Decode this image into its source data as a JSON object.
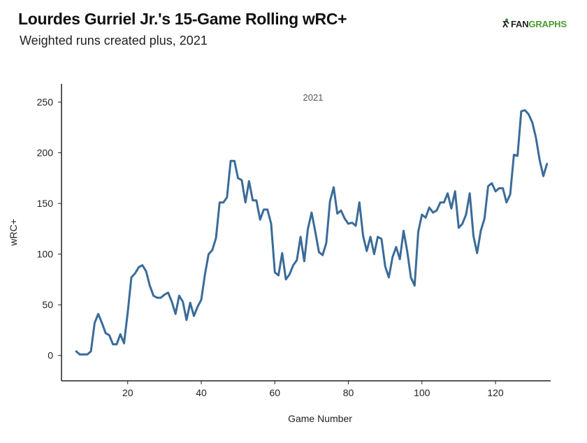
{
  "header": {
    "title": "Lourdes Gurriel Jr.'s 15-Game Rolling wRC+",
    "subtitle": "Weighted runs created plus, 2021",
    "logo_text": "FANGRAPHS",
    "logo_part1": "FAN",
    "logo_part2": "GRAPHS"
  },
  "chart_data": {
    "type": "line",
    "title": "Lourdes Gurriel Jr.'s 15-Game Rolling wRC+",
    "subtitle": "Weighted runs created plus, 2021",
    "xlabel": "Game Number",
    "ylabel": "wRC+",
    "xlim": [
      2,
      135
    ],
    "ylim": [
      -25,
      268
    ],
    "xticks": [
      20,
      40,
      60,
      80,
      100,
      120
    ],
    "yticks": [
      0,
      50,
      100,
      150,
      200,
      250
    ],
    "grid": false,
    "line_color": "#3b6b99",
    "series": [
      {
        "name": "2021",
        "x": [
          6,
          7,
          8,
          9,
          10,
          11,
          12,
          13,
          14,
          15,
          16,
          17,
          18,
          19,
          20,
          21,
          22,
          23,
          24,
          25,
          26,
          27,
          28,
          29,
          30,
          31,
          32,
          33,
          34,
          35,
          36,
          37,
          38,
          39,
          40,
          41,
          42,
          43,
          44,
          45,
          46,
          47,
          48,
          49,
          50,
          51,
          52,
          53,
          54,
          55,
          56,
          57,
          58,
          59,
          60,
          61,
          62,
          63,
          64,
          65,
          66,
          67,
          68,
          69,
          70,
          71,
          72,
          73,
          74,
          75,
          76,
          77,
          78,
          79,
          80,
          81,
          82,
          83,
          84,
          85,
          86,
          87,
          88,
          89,
          90,
          91,
          92,
          93,
          94,
          95,
          96,
          97,
          98,
          99,
          100,
          101,
          102,
          103,
          104,
          105,
          106,
          107,
          108,
          109,
          110,
          111,
          112,
          113,
          114,
          115,
          116,
          117,
          118,
          119,
          120,
          121,
          122,
          123,
          124,
          125,
          126,
          127,
          128,
          129,
          130,
          131,
          132,
          133,
          134
        ],
        "values": [
          4,
          1,
          1,
          1,
          4,
          32,
          41,
          32,
          22,
          20,
          11,
          11,
          21,
          12,
          42,
          77,
          81,
          87,
          89,
          83,
          69,
          59,
          57,
          57,
          60,
          62,
          53,
          41,
          59,
          53,
          35,
          52,
          39,
          48,
          55,
          80,
          100,
          104,
          116,
          151,
          151,
          156,
          192,
          192,
          175,
          173,
          151,
          172,
          153,
          153,
          134,
          144,
          144,
          130,
          82,
          79,
          101,
          75,
          80,
          89,
          94,
          117,
          93,
          125,
          141,
          122,
          102,
          99,
          111,
          152,
          166,
          140,
          143,
          135,
          130,
          131,
          128,
          151,
          118,
          103,
          117,
          100,
          117,
          115,
          88,
          77,
          97,
          107,
          95,
          123,
          103,
          77,
          69,
          122,
          139,
          136,
          146,
          141,
          143,
          151,
          151,
          160,
          145,
          162,
          126,
          130,
          139,
          160,
          118,
          101,
          123,
          135,
          167,
          170,
          162,
          165,
          165,
          151,
          159,
          198,
          197,
          241,
          242,
          238,
          230,
          215,
          193,
          177,
          189
        ]
      }
    ]
  }
}
